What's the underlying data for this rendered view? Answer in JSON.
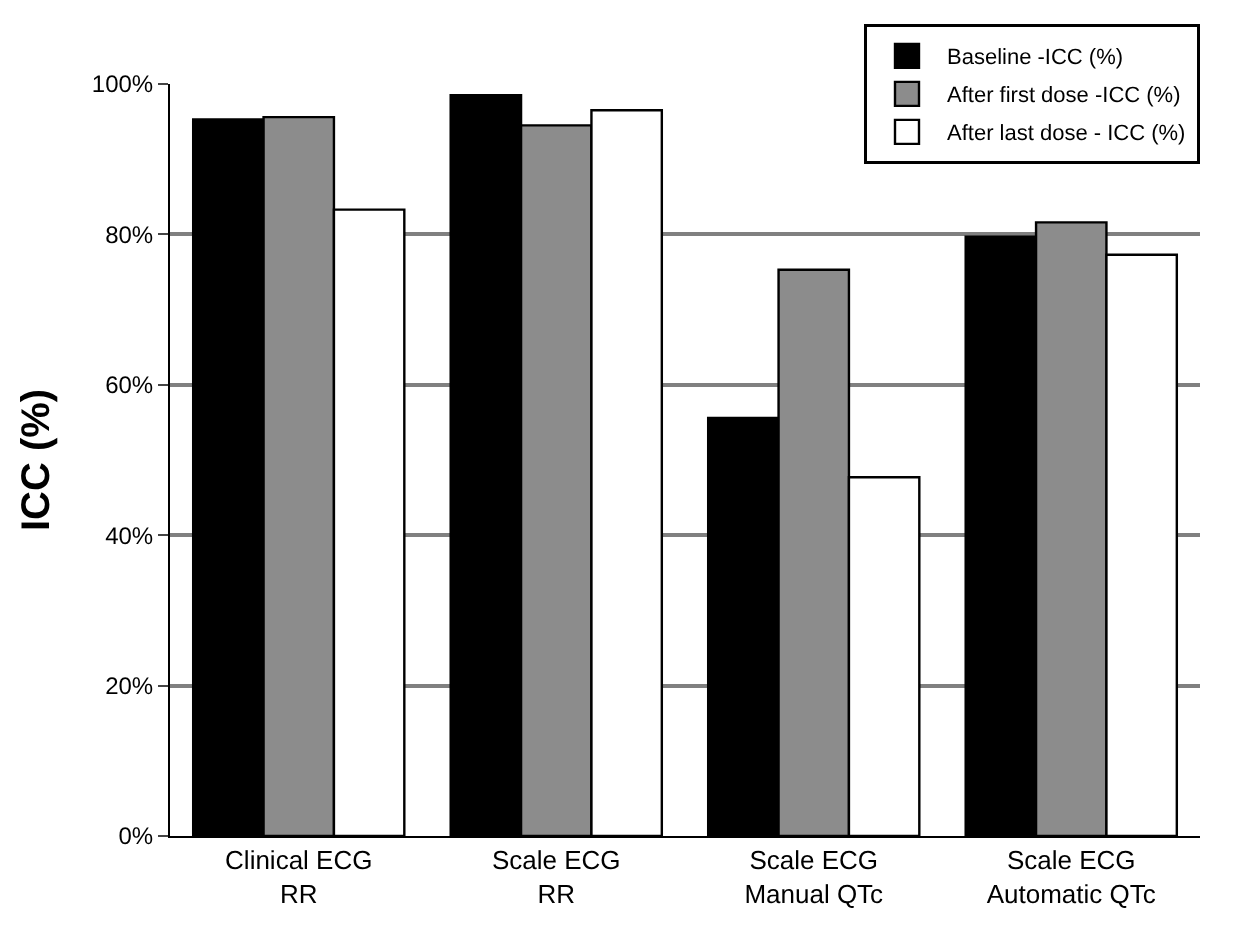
{
  "chart_data": {
    "type": "bar",
    "ylabel": "ICC (%)",
    "categories": [
      "Clinical ECG\nRR",
      "Scale ECG\nRR",
      "Scale ECG\nManual QTc",
      "Scale ECG\nAutomatic QTc"
    ],
    "series": [
      {
        "name": "Baseline -ICC (%)",
        "color": "#000000",
        "values": [
          95.3,
          98.5,
          55.6,
          79.7
        ]
      },
      {
        "name": "After first dose -ICC (%)",
        "color": "#8c8c8c",
        "values": [
          95.6,
          94.5,
          75.3,
          81.6
        ]
      },
      {
        "name": "After last dose - ICC (%)",
        "color": "#ffffff",
        "values": [
          83.3,
          96.5,
          47.7,
          77.3
        ]
      }
    ],
    "ylim": [
      0,
      100
    ],
    "yticks": [
      {
        "value": 0,
        "label": "0%"
      },
      {
        "value": 20,
        "label": "20%"
      },
      {
        "value": 40,
        "label": "40%"
      },
      {
        "value": 60,
        "label": "60%"
      },
      {
        "value": 80,
        "label": "80%"
      },
      {
        "value": 100,
        "label": "100%"
      }
    ],
    "grid": "y",
    "legend": "top right"
  }
}
